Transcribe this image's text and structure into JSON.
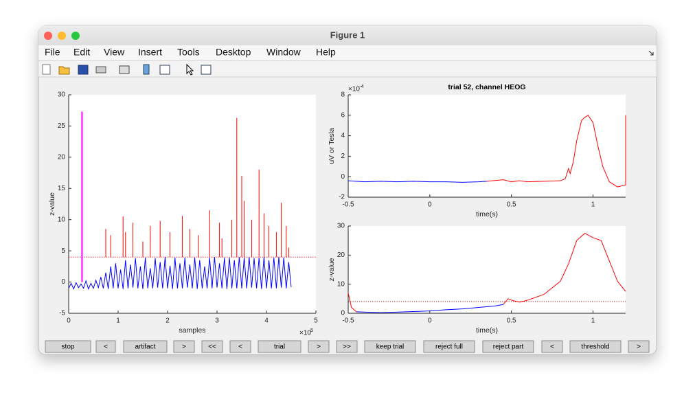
{
  "window": {
    "title": "Figure 1"
  },
  "menu": [
    "File",
    "Edit",
    "View",
    "Insert",
    "Tools",
    "Desktop",
    "Window",
    "Help"
  ],
  "buttons": [
    "stop",
    "<",
    "artifact",
    ">",
    "<<",
    "<",
    "trial",
    ">",
    ">>",
    "keep trial",
    "reject full",
    "reject part",
    "<",
    "threshold",
    ">"
  ],
  "chart_data": [
    {
      "type": "line",
      "xlabel": "samples",
      "ylabel": "z-value",
      "x_exponent": {
        "base": "×10",
        "power": "5"
      },
      "xlim": [
        0,
        5
      ],
      "xticks": [
        0,
        1,
        2,
        3,
        4,
        5
      ],
      "ylim": [
        -5,
        30
      ],
      "yticks": [
        -5,
        0,
        5,
        10,
        15,
        20,
        25,
        30
      ],
      "threshold": 4,
      "threshold_color": "#ff0000",
      "series": [
        {
          "color": "#0000ff",
          "x": [
            0,
            0.05,
            0.1,
            0.15,
            0.2,
            0.25,
            0.3,
            0.35,
            0.4,
            0.45,
            0.5,
            0.55,
            0.6,
            0.65,
            0.7,
            0.75,
            0.8,
            0.85,
            0.9,
            0.95,
            1,
            1.05,
            1.1,
            1.15,
            1.2,
            1.25,
            1.3,
            1.35,
            1.4,
            1.45,
            1.5,
            1.55,
            1.6,
            1.65,
            1.7,
            1.75,
            1.8,
            1.85,
            1.9,
            1.95,
            2,
            2.05,
            2.1,
            2.15,
            2.2,
            2.25,
            2.3,
            2.35,
            2.4,
            2.45,
            2.5,
            2.55,
            2.6,
            2.65,
            2.7,
            2.75,
            2.8,
            2.85,
            2.9,
            2.95,
            3,
            3.05,
            3.1,
            3.15,
            3.2,
            3.25,
            3.3,
            3.35,
            3.4,
            3.45,
            3.5,
            3.55,
            3.6,
            3.65,
            3.7,
            3.75,
            3.8,
            3.85,
            3.9,
            3.95,
            4,
            4.05,
            4.1,
            4.15,
            4.2,
            4.25,
            4.3,
            4.35,
            4.4,
            4.45,
            4.5
          ],
          "values": [
            -1,
            -0.2,
            -1.1,
            -0.1,
            -0.9,
            -0.3,
            -1,
            0.2,
            -1.1,
            -0.2,
            -1,
            0.3,
            -0.9,
            0.8,
            -1,
            1.5,
            -1.1,
            2.5,
            -1,
            3,
            -1,
            2,
            -1.1,
            3.5,
            -1,
            2.8,
            -0.9,
            3.8,
            -1,
            2.5,
            -1.1,
            3.9,
            -1,
            2.2,
            -1,
            3.8,
            -0.9,
            3.2,
            -1,
            4,
            -1,
            2.6,
            -1.1,
            3.9,
            -1,
            3,
            -1,
            3.9,
            -0.9,
            2.8,
            -1,
            3.9,
            -1.1,
            3.5,
            -1,
            2.5,
            -1,
            3.9,
            -1,
            4,
            -0.9,
            3,
            -1,
            3.9,
            -1.1,
            3.9,
            -1,
            3.5,
            -1,
            4,
            -1,
            3.9,
            -1,
            4,
            -0.9,
            3.8,
            -1,
            3.9,
            -1.1,
            4,
            -1,
            3.5,
            -1,
            3.9,
            -1,
            4,
            -0.9,
            3.9,
            -1,
            3.2,
            -0.8
          ]
        }
      ],
      "spikes": {
        "color": "#ff0000",
        "x": [
          0.75,
          0.85,
          1.1,
          1.15,
          1.3,
          1.5,
          1.65,
          1.85,
          2.05,
          2.3,
          2.45,
          2.62,
          2.85,
          3.05,
          3.1,
          3.3,
          3.4,
          3.5,
          3.55,
          3.7,
          3.85,
          3.95,
          4.05,
          4.2,
          4.3,
          4.4,
          4.45
        ],
        "values": [
          8.5,
          7.5,
          10.5,
          8,
          9.5,
          6.5,
          9,
          9.8,
          8,
          10.6,
          8.5,
          7.5,
          11.5,
          9.5,
          7,
          10,
          26.3,
          17,
          13,
          10,
          18,
          11,
          9,
          8,
          12.7,
          9,
          5.5
        ]
      },
      "artifact": {
        "x": 0.27,
        "value": 27.3,
        "color": "#ff00ff"
      }
    },
    {
      "type": "line",
      "title": "trial  52, channel HEOG",
      "xlabel": "time(s)",
      "ylabel": "uV or Tesla",
      "y_exponent": {
        "base": "×10",
        "power": "-4"
      },
      "xlim": [
        -0.5,
        1.2
      ],
      "xticks": [
        -0.5,
        0,
        0.5,
        1
      ],
      "ylim": [
        -2,
        8
      ],
      "yticks": [
        -2,
        0,
        2,
        4,
        6,
        8
      ],
      "series": [
        {
          "color": "#0000ff",
          "x": [
            -0.5,
            -0.4,
            -0.3,
            -0.2,
            -0.1,
            0,
            0.1,
            0.2,
            0.3,
            0.35
          ],
          "values": [
            -0.4,
            -0.5,
            -0.45,
            -0.5,
            -0.45,
            -0.5,
            -0.5,
            -0.55,
            -0.5,
            -0.45
          ]
        },
        {
          "color": "#ff0000",
          "x": [
            0.35,
            0.45,
            0.5,
            0.55,
            0.6,
            0.7,
            0.8,
            0.83,
            0.85,
            0.86,
            0.88,
            0.9,
            0.93,
            0.95,
            0.97,
            1,
            1.03,
            1.06,
            1.1,
            1.15,
            1.2,
            1.2
          ],
          "values": [
            -0.45,
            -0.3,
            -0.5,
            -0.4,
            -0.5,
            -0.45,
            -0.4,
            -0.2,
            0.8,
            0.3,
            1.5,
            3.5,
            5.5,
            5.8,
            6,
            5.3,
            3,
            1,
            -0.5,
            -1,
            -0.8,
            6
          ]
        }
      ]
    },
    {
      "type": "line",
      "xlabel": "time(s)",
      "ylabel": "z-value",
      "xlim": [
        -0.5,
        1.2
      ],
      "xticks": [
        -0.5,
        0,
        0.5,
        1
      ],
      "ylim": [
        0,
        30
      ],
      "yticks": [
        0,
        10,
        20,
        30
      ],
      "threshold": 4,
      "threshold_color": "#990000",
      "series": [
        {
          "color": "#ff0000",
          "x": [
            -0.5,
            -0.48,
            -0.45
          ],
          "values": [
            7,
            2,
            0.5
          ]
        },
        {
          "color": "#0000ff",
          "x": [
            -0.45,
            -0.3,
            -0.1,
            0,
            0.1,
            0.2,
            0.3,
            0.4,
            0.45
          ],
          "values": [
            0.5,
            0.2,
            0.6,
            0.8,
            1.2,
            1.5,
            2,
            2.5,
            3
          ]
        },
        {
          "color": "#ff0000",
          "x": [
            0.45,
            0.48,
            0.5,
            0.55,
            0.6,
            0.7,
            0.8,
            0.85,
            0.9,
            0.95,
            1,
            1.05,
            1.1,
            1.15,
            1.2
          ],
          "values": [
            3,
            5,
            4.5,
            3.8,
            4.5,
            6.5,
            11,
            17,
            25,
            27.5,
            26,
            25,
            18,
            11,
            7.5
          ]
        }
      ]
    }
  ]
}
